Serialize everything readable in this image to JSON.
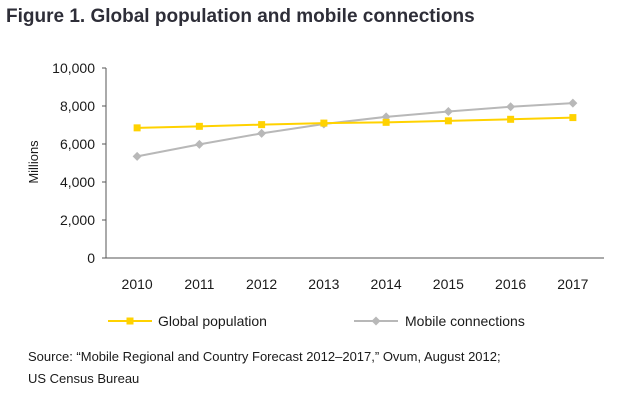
{
  "figure": {
    "title": "Figure 1. Global population and mobile connections",
    "source_lines": [
      "Source: “Mobile Regional and Country Forecast 2012–2017,” Ovum, August 2012;",
      "US Census Bureau"
    ]
  },
  "chart_data": {
    "type": "line",
    "title": "Figure 1. Global population and mobile connections",
    "xlabel": "",
    "ylabel": "Millions",
    "x": [
      "2010",
      "2011",
      "2012",
      "2013",
      "2014",
      "2015",
      "2016",
      "2017"
    ],
    "y_ticks": [
      "0",
      "2,000",
      "4,000",
      "6,000",
      "8,000",
      "10,000"
    ],
    "ylim": [
      0,
      10000
    ],
    "grid": false,
    "legend_position": "bottom",
    "series": [
      {
        "name": "Global population",
        "color": "#ffd200",
        "marker": "square",
        "values": [
          6850,
          6930,
          7020,
          7100,
          7140,
          7220,
          7300,
          7390
        ]
      },
      {
        "name": "Mobile connections",
        "color": "#b8b8b8",
        "marker": "diamond",
        "values": [
          5350,
          5980,
          6560,
          7050,
          7430,
          7710,
          7960,
          8150
        ]
      }
    ]
  }
}
